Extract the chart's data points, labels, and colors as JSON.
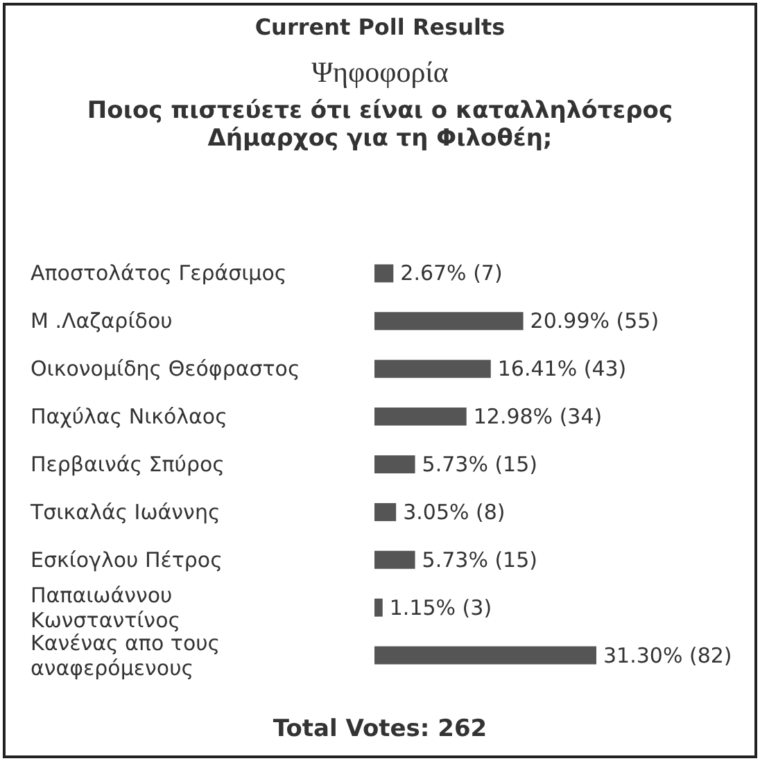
{
  "chart_data": {
    "type": "bar",
    "orientation": "horizontal",
    "title": "Current Poll Results",
    "subtitle": "Ποιος πιστεύετε ότι είναι ο καταλληλότερος Δήμαρχος για τη Φιλοθέη;",
    "annotations": [
      "Ψηφοφορία",
      "Total Votes: 262"
    ],
    "categories": [
      "Αποστολάτος Γεράσιμος",
      "Μ .Λαζαρίδου",
      "Οικονομίδης Θεόφραστος",
      "Παχύλας Νικόλαος",
      "Περβαινάς Σπύρος",
      "Τσικαλάς Ιωάννης",
      "Εσκίογλου Πέτρος",
      "Παπαιωάννου\nΚωνσταντίνος",
      "Κανένας απο τους\nαναφερόμενους"
    ],
    "values": [
      2.67,
      20.99,
      16.41,
      12.98,
      5.73,
      3.05,
      5.73,
      1.15,
      31.3
    ],
    "value_labels": [
      "2.67% (7)",
      "20.99% (55)",
      "16.41% (43)",
      "12.98% (34)",
      "5.73% (15)",
      "3.05% (8)",
      "5.73% (15)",
      "1.15% (3)",
      "31.30% (82)"
    ],
    "color": "#555555",
    "grid": false
  }
}
